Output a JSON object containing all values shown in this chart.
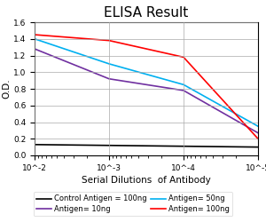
{
  "title": "ELISA Result",
  "ylabel": "O.D.",
  "xlabel": "Serial Dilutions  of Antibody",
  "xlim": [
    0.01,
    1e-05
  ],
  "ylim": [
    0,
    1.6
  ],
  "yticks": [
    0,
    0.2,
    0.4,
    0.6,
    0.8,
    1.0,
    1.2,
    1.4,
    1.6
  ],
  "xticks": [
    0.01,
    0.001,
    0.0001,
    1e-05
  ],
  "xticklabels": [
    "10^-2",
    "10^-3",
    "10^-4",
    "10^-5"
  ],
  "lines": [
    {
      "label": "Control Antigen = 100ng",
      "color": "#000000",
      "x": [
        0.01,
        0.001,
        0.0001,
        1e-05
      ],
      "y": [
        0.13,
        0.12,
        0.11,
        0.1
      ]
    },
    {
      "label": "Antigen= 10ng",
      "color": "#7030A0",
      "x": [
        0.01,
        0.001,
        0.0001,
        1e-05
      ],
      "y": [
        1.28,
        0.92,
        0.78,
        0.27
      ]
    },
    {
      "label": "Antigen= 50ng",
      "color": "#00B0F0",
      "x": [
        0.01,
        0.001,
        0.0001,
        1e-05
      ],
      "y": [
        1.4,
        1.1,
        0.85,
        0.35
      ]
    },
    {
      "label": "Antigen= 100ng",
      "color": "#FF0000",
      "x": [
        0.01,
        0.001,
        0.0001,
        1e-05
      ],
      "y": [
        1.45,
        1.38,
        1.18,
        0.2
      ]
    }
  ],
  "title_fontsize": 11,
  "label_fontsize": 7.5,
  "tick_fontsize": 6.5,
  "legend_fontsize": 6.0,
  "background_color": "#ffffff",
  "grid_color": "#aaaaaa"
}
